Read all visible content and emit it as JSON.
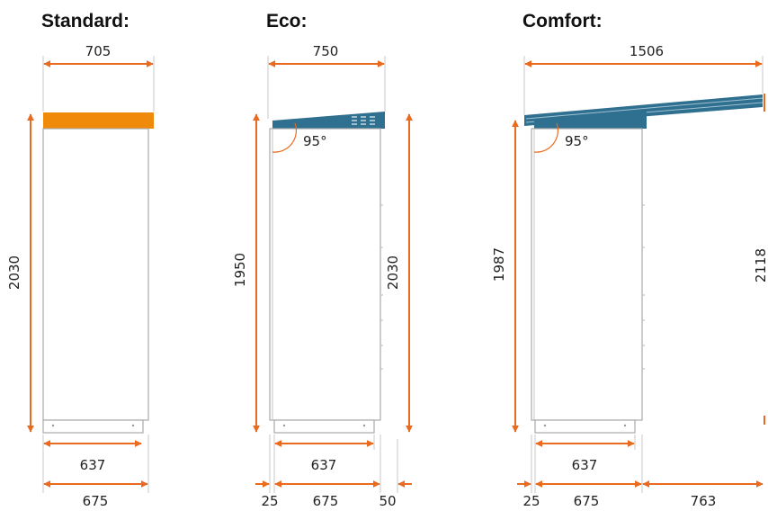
{
  "colors": {
    "accent": "#ea6a1f",
    "standard_roof": "#f08a0b",
    "blue_roof": "#2f6f8f",
    "outline": "#a9a9a9"
  },
  "standard": {
    "title": "Standard:",
    "width_top": "705",
    "height": "2030",
    "base_inner": "637",
    "base_outer": "675"
  },
  "eco": {
    "title": "Eco:",
    "width_top": "750",
    "height_left": "1950",
    "height_right": "2030",
    "angle": "95°",
    "base_inner": "637",
    "left_offset": "25",
    "base_outer": "675",
    "right_offset": "50"
  },
  "comfort": {
    "title": "Comfort:",
    "width_top": "1506",
    "height_left": "1987",
    "height_right": "2118",
    "angle": "95°",
    "base_inner": "637",
    "left_offset": "25",
    "base_outer": "675",
    "extension": "763"
  }
}
